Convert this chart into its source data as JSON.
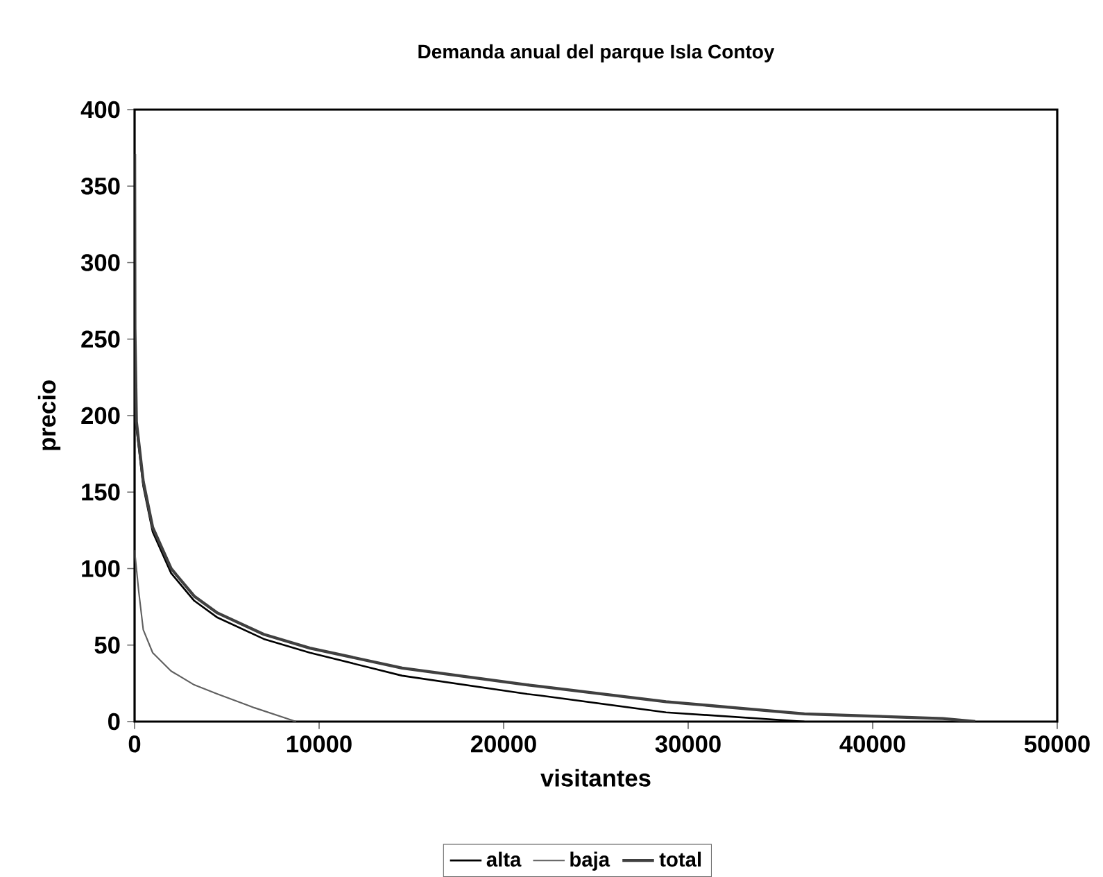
{
  "chart_data": {
    "type": "line",
    "title": "Demanda anual del parque Isla Contoy",
    "xlabel": "visitantes",
    "ylabel": "precio",
    "xlim": [
      0,
      50000
    ],
    "xticks": [
      0,
      10000,
      20000,
      30000,
      40000,
      50000
    ],
    "ylim": [
      0,
      400
    ],
    "yticks": [
      0,
      50,
      100,
      150,
      200,
      250,
      300,
      350,
      400
    ],
    "grid": false,
    "legend": "bottom",
    "series": [
      {
        "name": "alta",
        "color": "#000000",
        "x": [
          10,
          20,
          100,
          470,
          980,
          1980,
          3230,
          4490,
          7000,
          9500,
          14500,
          21280,
          22000,
          28800,
          36300
        ],
        "values": [
          330,
          250,
          192,
          154,
          124,
          97,
          79,
          68,
          54,
          45,
          30,
          18,
          17,
          6,
          0
        ]
      },
      {
        "name": "baja",
        "color": "#606060",
        "x": [
          0,
          100,
          225,
          470,
          980,
          1980,
          3230,
          4490,
          6500,
          8750
        ],
        "values": [
          112,
          100,
          85,
          60,
          45,
          33,
          24,
          18,
          9,
          0
        ]
      },
      {
        "name": "total",
        "color": "#404040",
        "x": [
          5,
          20,
          100,
          470,
          980,
          1980,
          3230,
          4490,
          7000,
          9500,
          14500,
          21280,
          22000,
          28800,
          36300,
          43800,
          45560
        ],
        "values": [
          371,
          257,
          196,
          157,
          127,
          100,
          82,
          71,
          57,
          48,
          35,
          24,
          23,
          13,
          5,
          2,
          0
        ]
      }
    ]
  }
}
